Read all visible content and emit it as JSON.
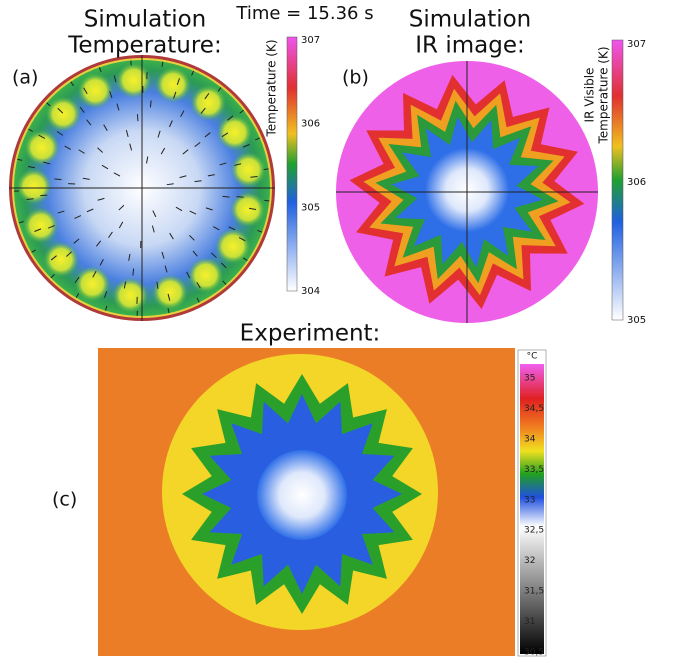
{
  "panel_a": {
    "title_line1": "Simulation",
    "title_line2": "Temperature:",
    "label": "(a)",
    "colorbar": {
      "title": "Temperature (K)",
      "ticks": [
        "307",
        "306",
        "305",
        "304"
      ]
    }
  },
  "time": "Time = 15.36 s",
  "panel_b": {
    "title_line1": "Simulation",
    "title_line2": "IR image:",
    "label": "(b)",
    "colorbar": {
      "title_line1": "IR Visible",
      "title_line2": "Temperature (K)",
      "ticks": [
        "307",
        "306",
        "305"
      ]
    }
  },
  "panel_c": {
    "title": "Experiment:",
    "label": "(c)",
    "colorbar": {
      "unit": "°C",
      "ticks": [
        "35",
        "34,5",
        "34",
        "33,5",
        "33",
        "32,5",
        "32",
        "31,5",
        "31",
        "30,5"
      ]
    }
  }
}
